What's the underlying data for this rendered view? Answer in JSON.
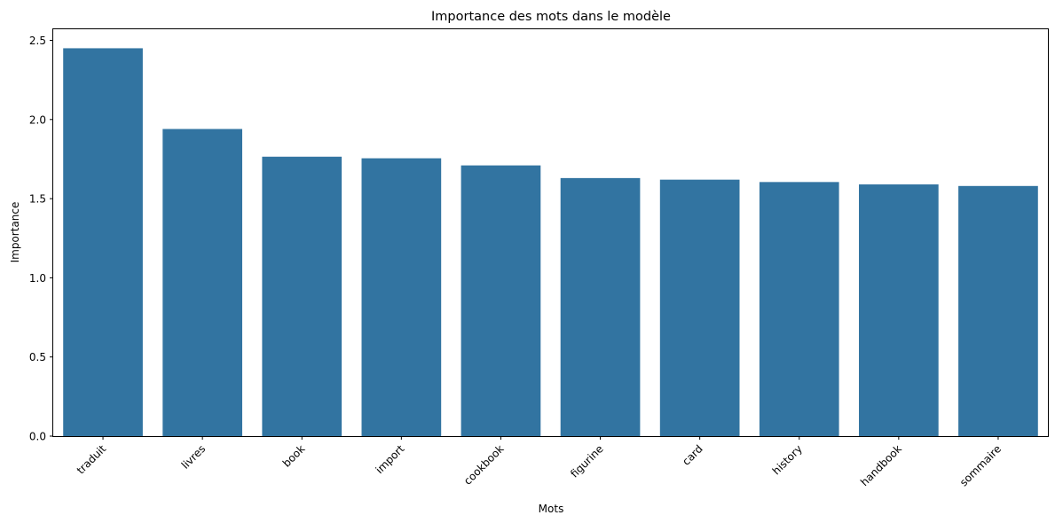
{
  "chart_data": {
    "type": "bar",
    "title": "Importance des mots dans le modèle",
    "xlabel": "Mots",
    "ylabel": "Importance",
    "categories": [
      "traduit",
      "livres",
      "book",
      "import",
      "cookbook",
      "figurine",
      "card",
      "history",
      "handbook",
      "sommaire"
    ],
    "values": [
      2.45,
      1.94,
      1.765,
      1.755,
      1.71,
      1.63,
      1.62,
      1.605,
      1.59,
      1.58
    ],
    "ylim": [
      0,
      2.57
    ],
    "yticks": [
      "0.0",
      "0.5",
      "1.0",
      "1.5",
      "2.0",
      "2.5"
    ],
    "bar_color": "#3274a1",
    "grid": false,
    "legend": "none"
  }
}
